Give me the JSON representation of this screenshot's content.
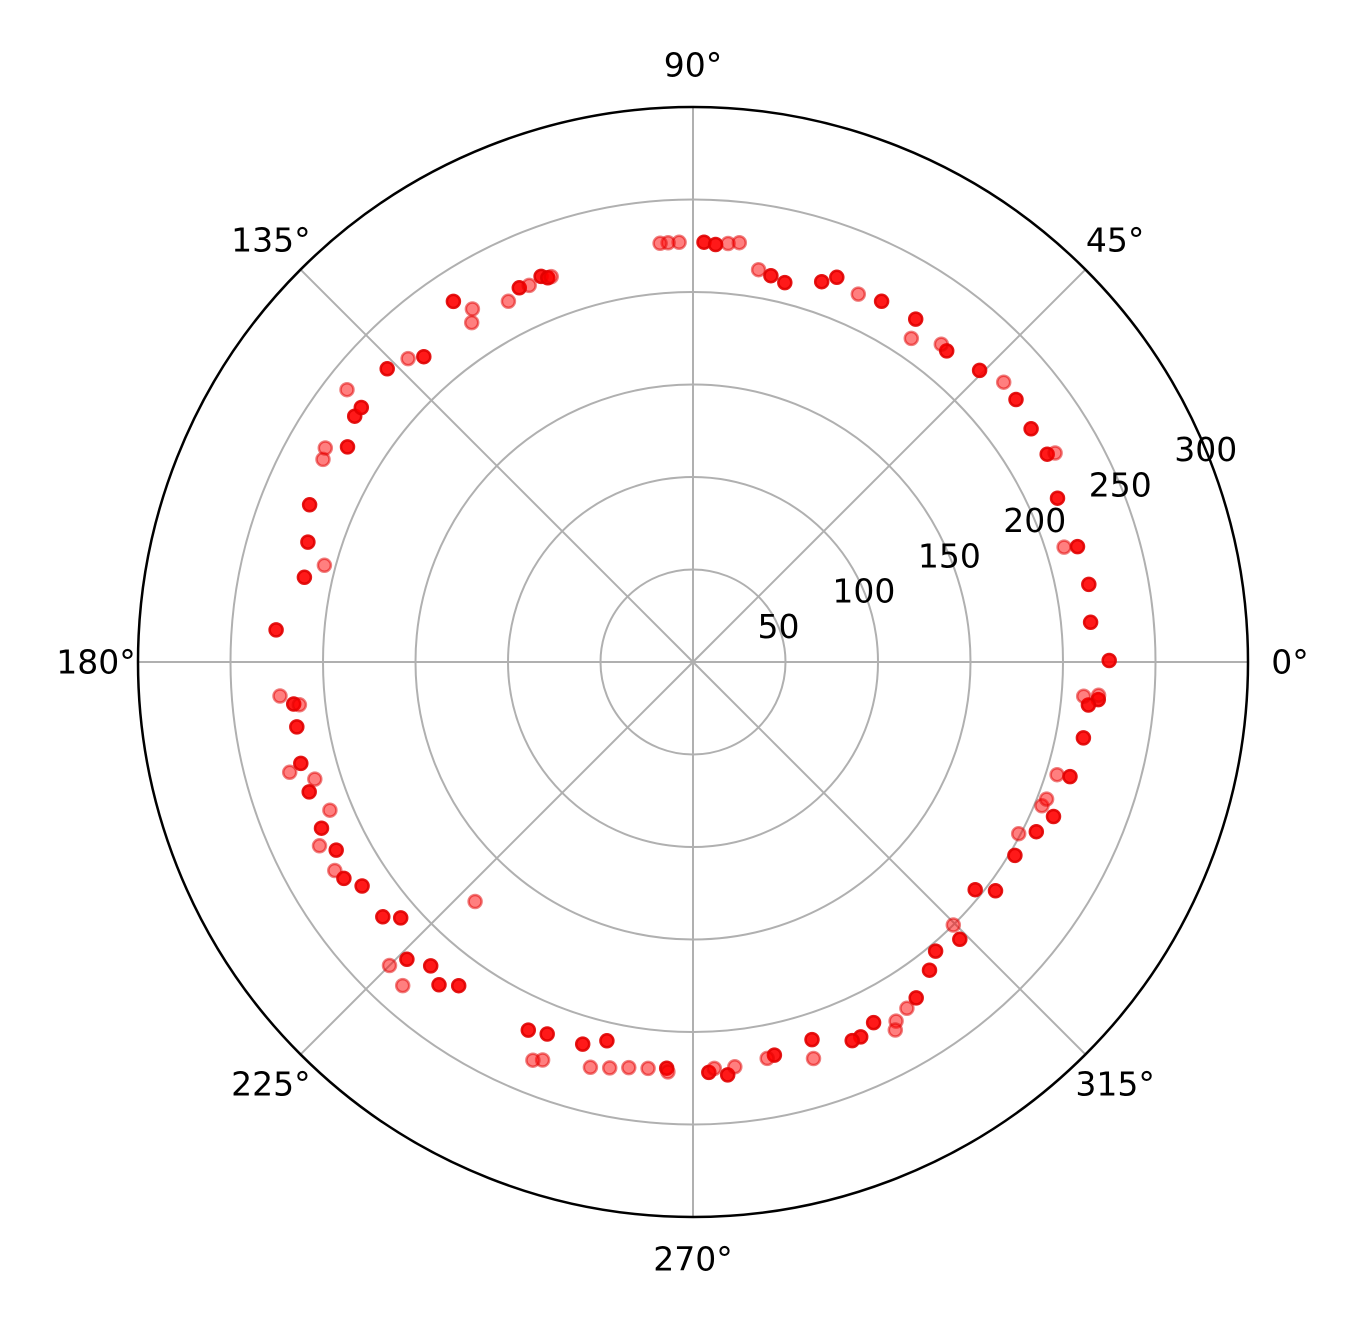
{
  "chart_data": {
    "type": "scatter",
    "projection": "polar",
    "title": "",
    "theta_unit": "degrees",
    "theta_direction": "counterclockwise",
    "theta_zero": "east",
    "rlim": [
      0,
      300
    ],
    "r_ticks": [
      50,
      100,
      150,
      200,
      250,
      300
    ],
    "r_tick_labels": [
      "50",
      "100",
      "150",
      "200",
      "250",
      "300"
    ],
    "theta_ticks": [
      0,
      45,
      90,
      135,
      180,
      225,
      270,
      315
    ],
    "theta_tick_labels": [
      "0°",
      "45°",
      "90°",
      "135°",
      "180°",
      "225°",
      "270°",
      "315°"
    ],
    "grid": true,
    "legend": false,
    "marker_color": "#ff0000",
    "marker_outline_color": "#e00000",
    "series": [
      {
        "alpha": 0.9,
        "points": [
          {
            "theta": 88.5,
            "r": 227
          },
          {
            "theta": 86.9,
            "r": 226
          },
          {
            "theta": 78.6,
            "r": 213
          },
          {
            "theta": 76.4,
            "r": 211
          },
          {
            "theta": 71.3,
            "r": 217
          },
          {
            "theta": 69.5,
            "r": 222
          },
          {
            "theta": 62.4,
            "r": 220
          },
          {
            "theta": 57.0,
            "r": 221
          },
          {
            "theta": 50.8,
            "r": 217
          },
          {
            "theta": 45.5,
            "r": 221
          },
          {
            "theta": 39.1,
            "r": 225
          },
          {
            "theta": 34.6,
            "r": 222
          },
          {
            "theta": 30.4,
            "r": 222
          },
          {
            "theta": 24.2,
            "r": 216
          },
          {
            "theta": 16.7,
            "r": 217
          },
          {
            "theta": 11.1,
            "r": 218
          },
          {
            "theta": 5.7,
            "r": 216
          },
          {
            "theta": 0.2,
            "r": 225
          },
          {
            "theta": -5.3,
            "r": 220
          },
          {
            "theta": -6.2,
            "r": 215
          },
          {
            "theta": -11.0,
            "r": 215
          },
          {
            "theta": -16.9,
            "r": 213
          },
          {
            "theta": -23.2,
            "r": 212
          },
          {
            "theta": -26.3,
            "r": 207
          },
          {
            "theta": -31.0,
            "r": 203
          },
          {
            "theta": -37.1,
            "r": 205
          },
          {
            "theta": -38.9,
            "r": 196
          },
          {
            "theta": -46.1,
            "r": 208
          },
          {
            "theta": -50.0,
            "r": 204
          },
          {
            "theta": -52.5,
            "r": 210
          },
          {
            "theta": -56.4,
            "r": 218
          },
          {
            "theta": -63.4,
            "r": 218
          },
          {
            "theta": -65.9,
            "r": 222
          },
          {
            "theta": -67.2,
            "r": 222
          },
          {
            "theta": -72.5,
            "r": 214
          },
          {
            "theta": -78.3,
            "r": 217
          },
          {
            "theta": -85.2,
            "r": 224
          },
          {
            "theta": -87.8,
            "r": 222
          },
          {
            "theta": -93.7,
            "r": 220
          },
          {
            "theta": -102.8,
            "r": 210
          },
          {
            "theta": -106.1,
            "r": 215
          },
          {
            "theta": -111.4,
            "r": 216
          },
          {
            "theta": -114.1,
            "r": 218
          },
          {
            "theta": -125.9,
            "r": 216
          },
          {
            "theta": -128.2,
            "r": 222
          },
          {
            "theta": -130.8,
            "r": 217
          },
          {
            "theta": -133.9,
            "r": 223
          },
          {
            "theta": -138.8,
            "r": 210
          },
          {
            "theta": -140.6,
            "r": 217
          },
          {
            "theta": -145.9,
            "r": 216
          },
          {
            "theta": -148.2,
            "r": 222
          },
          {
            "theta": -152.2,
            "r": 218
          },
          {
            "theta": -155.9,
            "r": 220
          },
          {
            "theta": -161.3,
            "r": 219
          },
          {
            "theta": -165.5,
            "r": 219
          },
          {
            "theta": -170.7,
            "r": 217
          },
          {
            "theta": -174.0,
            "r": 217
          },
          {
            "theta": 175.6,
            "r": 226
          },
          {
            "theta": 167.7,
            "r": 215
          },
          {
            "theta": 162.7,
            "r": 218
          },
          {
            "theta": 157.7,
            "r": 224
          },
          {
            "theta": 148.1,
            "r": 220
          },
          {
            "theta": 144.0,
            "r": 226
          },
          {
            "theta": 142.5,
            "r": 226
          },
          {
            "theta": 136.2,
            "r": 229
          },
          {
            "theta": 131.4,
            "r": 220
          },
          {
            "theta": 123.6,
            "r": 234
          },
          {
            "theta": 111.5,
            "r": 224
          },
          {
            "theta": 114.9,
            "r": 223
          },
          {
            "theta": 110.7,
            "r": 222
          }
        ]
      },
      {
        "alpha": 0.5,
        "points": [
          {
            "theta": 91.9,
            "r": 227
          },
          {
            "theta": 93.4,
            "r": 227
          },
          {
            "theta": 94.5,
            "r": 227
          },
          {
            "theta": 85.2,
            "r": 227
          },
          {
            "theta": 83.7,
            "r": 228
          },
          {
            "theta": 80.5,
            "r": 215
          },
          {
            "theta": 65.8,
            "r": 218
          },
          {
            "theta": 56.0,
            "r": 211
          },
          {
            "theta": 52.0,
            "r": 218
          },
          {
            "theta": 42.0,
            "r": 226
          },
          {
            "theta": 30.0,
            "r": 226
          },
          {
            "theta": 17.2,
            "r": 210
          },
          {
            "theta": -4.7,
            "r": 220
          },
          {
            "theta": -5.0,
            "r": 212
          },
          {
            "theta": -17.2,
            "r": 206
          },
          {
            "theta": -22.4,
            "r": 204
          },
          {
            "theta": -21.2,
            "r": 205
          },
          {
            "theta": -27.8,
            "r": 199
          },
          {
            "theta": -45.3,
            "r": 200
          },
          {
            "theta": -58.3,
            "r": 220
          },
          {
            "theta": -60.5,
            "r": 223
          },
          {
            "theta": -61.2,
            "r": 227
          },
          {
            "theta": -73.1,
            "r": 224
          },
          {
            "theta": -79.4,
            "r": 218
          },
          {
            "theta": -84.1,
            "r": 220
          },
          {
            "theta": -87.0,
            "r": 220
          },
          {
            "theta": -93.5,
            "r": 222
          },
          {
            "theta": -96.3,
            "r": 221
          },
          {
            "theta": -99.0,
            "r": 222
          },
          {
            "theta": -101.6,
            "r": 224
          },
          {
            "theta": -104.2,
            "r": 226
          },
          {
            "theta": -110.7,
            "r": 230
          },
          {
            "theta": -111.9,
            "r": 232
          },
          {
            "theta": -131.9,
            "r": 235
          },
          {
            "theta": -135.0,
            "r": 232
          },
          {
            "theta": -132.3,
            "r": 175
          },
          {
            "theta": -149.8,
            "r": 224
          },
          {
            "theta": -153.8,
            "r": 225
          },
          {
            "theta": -157.8,
            "r": 212
          },
          {
            "theta": -162.8,
            "r": 214
          },
          {
            "theta": -164.7,
            "r": 226
          },
          {
            "theta": -173.8,
            "r": 214
          },
          {
            "theta": -175.3,
            "r": 224
          },
          {
            "theta": 165.3,
            "r": 206
          },
          {
            "theta": 151.3,
            "r": 228
          },
          {
            "theta": 149.8,
            "r": 230
          },
          {
            "theta": 141.8,
            "r": 238
          },
          {
            "theta": 133.2,
            "r": 225
          },
          {
            "theta": 123.1,
            "r": 219
          },
          {
            "theta": 122.0,
            "r": 225
          },
          {
            "theta": 117.1,
            "r": 219
          },
          {
            "theta": 113.5,
            "r": 222
          },
          {
            "theta": 110.2,
            "r": 222
          }
        ]
      }
    ]
  }
}
